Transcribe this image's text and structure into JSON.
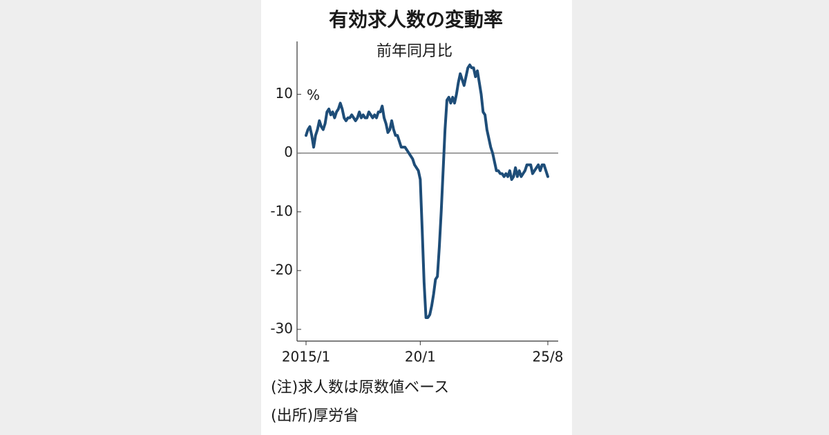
{
  "chart_data": {
    "type": "line",
    "title": "有効求人数の変動率",
    "subtitle": "前年同月比",
    "unit_label": "%",
    "notes": [
      "(注)求人数は原数値ベース",
      "(出所)厚労省"
    ],
    "categories": [
      "2015/1",
      null,
      null,
      null,
      null,
      null,
      null,
      null,
      null,
      null,
      null,
      null,
      null,
      null,
      null,
      null,
      null,
      null,
      null,
      null,
      null,
      null,
      null,
      null,
      null,
      null,
      null,
      null,
      null,
      null,
      null,
      null,
      null,
      null,
      null,
      null,
      null,
      null,
      null,
      null,
      null,
      null,
      null,
      null,
      null,
      null,
      null,
      null,
      null,
      null,
      null,
      null,
      null,
      null,
      null,
      null,
      null,
      null,
      null,
      null,
      "20/1",
      null,
      null,
      null,
      null,
      null,
      null,
      null,
      null,
      null,
      null,
      null,
      null,
      null,
      null,
      null,
      null,
      null,
      null,
      null,
      null,
      null,
      null,
      null,
      null,
      null,
      null,
      null,
      null,
      null,
      null,
      null,
      null,
      null,
      null,
      null,
      null,
      null,
      null,
      null,
      null,
      null,
      null,
      null,
      null,
      null,
      null,
      null,
      null,
      null,
      null,
      null,
      null,
      null,
      null,
      null,
      null,
      null,
      null,
      null,
      null,
      null,
      null,
      null,
      null,
      null,
      null,
      "25/8"
    ],
    "values": [
      3,
      4,
      4.5,
      3,
      1,
      3,
      4,
      5.5,
      4.5,
      4,
      5,
      7,
      7.5,
      6.5,
      7,
      6,
      7,
      7.5,
      8.5,
      7.5,
      6,
      5.5,
      6,
      6,
      6.5,
      6,
      5.5,
      6,
      7,
      6,
      6.5,
      6,
      6,
      7,
      6.5,
      6,
      6.5,
      6,
      7,
      7,
      8,
      6,
      5,
      3.5,
      4,
      5.5,
      4,
      3,
      3,
      2,
      1,
      1,
      1,
      0.5,
      0,
      -0.5,
      -1,
      -2,
      -2.5,
      -3,
      -4.5,
      -13,
      -22,
      -28,
      -28,
      -27.5,
      -26,
      -24,
      -21.5,
      -21,
      -16,
      -10,
      -3,
      4,
      9,
      9.5,
      8.5,
      9.5,
      8.5,
      10,
      12,
      13.5,
      12.5,
      11.5,
      13,
      14.5,
      15,
      14.5,
      14.5,
      13,
      14,
      12,
      10,
      7,
      6.5,
      4,
      2.5,
      1,
      0,
      -1.5,
      -3,
      -3,
      -3.5,
      -3.5,
      -4,
      -3.5,
      -4,
      -3,
      -4.5,
      -4,
      -2.5,
      -4,
      -3,
      -4,
      -3.5,
      -3,
      -2,
      -2,
      -2,
      -3.5,
      -3,
      -2.5,
      -2,
      -3,
      -2,
      -2,
      -3,
      -4
    ],
    "color": "#1e4d78",
    "ylim": [
      -32,
      19
    ],
    "yticks": [
      -30,
      -20,
      -10,
      0,
      10
    ],
    "zero_line": true
  }
}
